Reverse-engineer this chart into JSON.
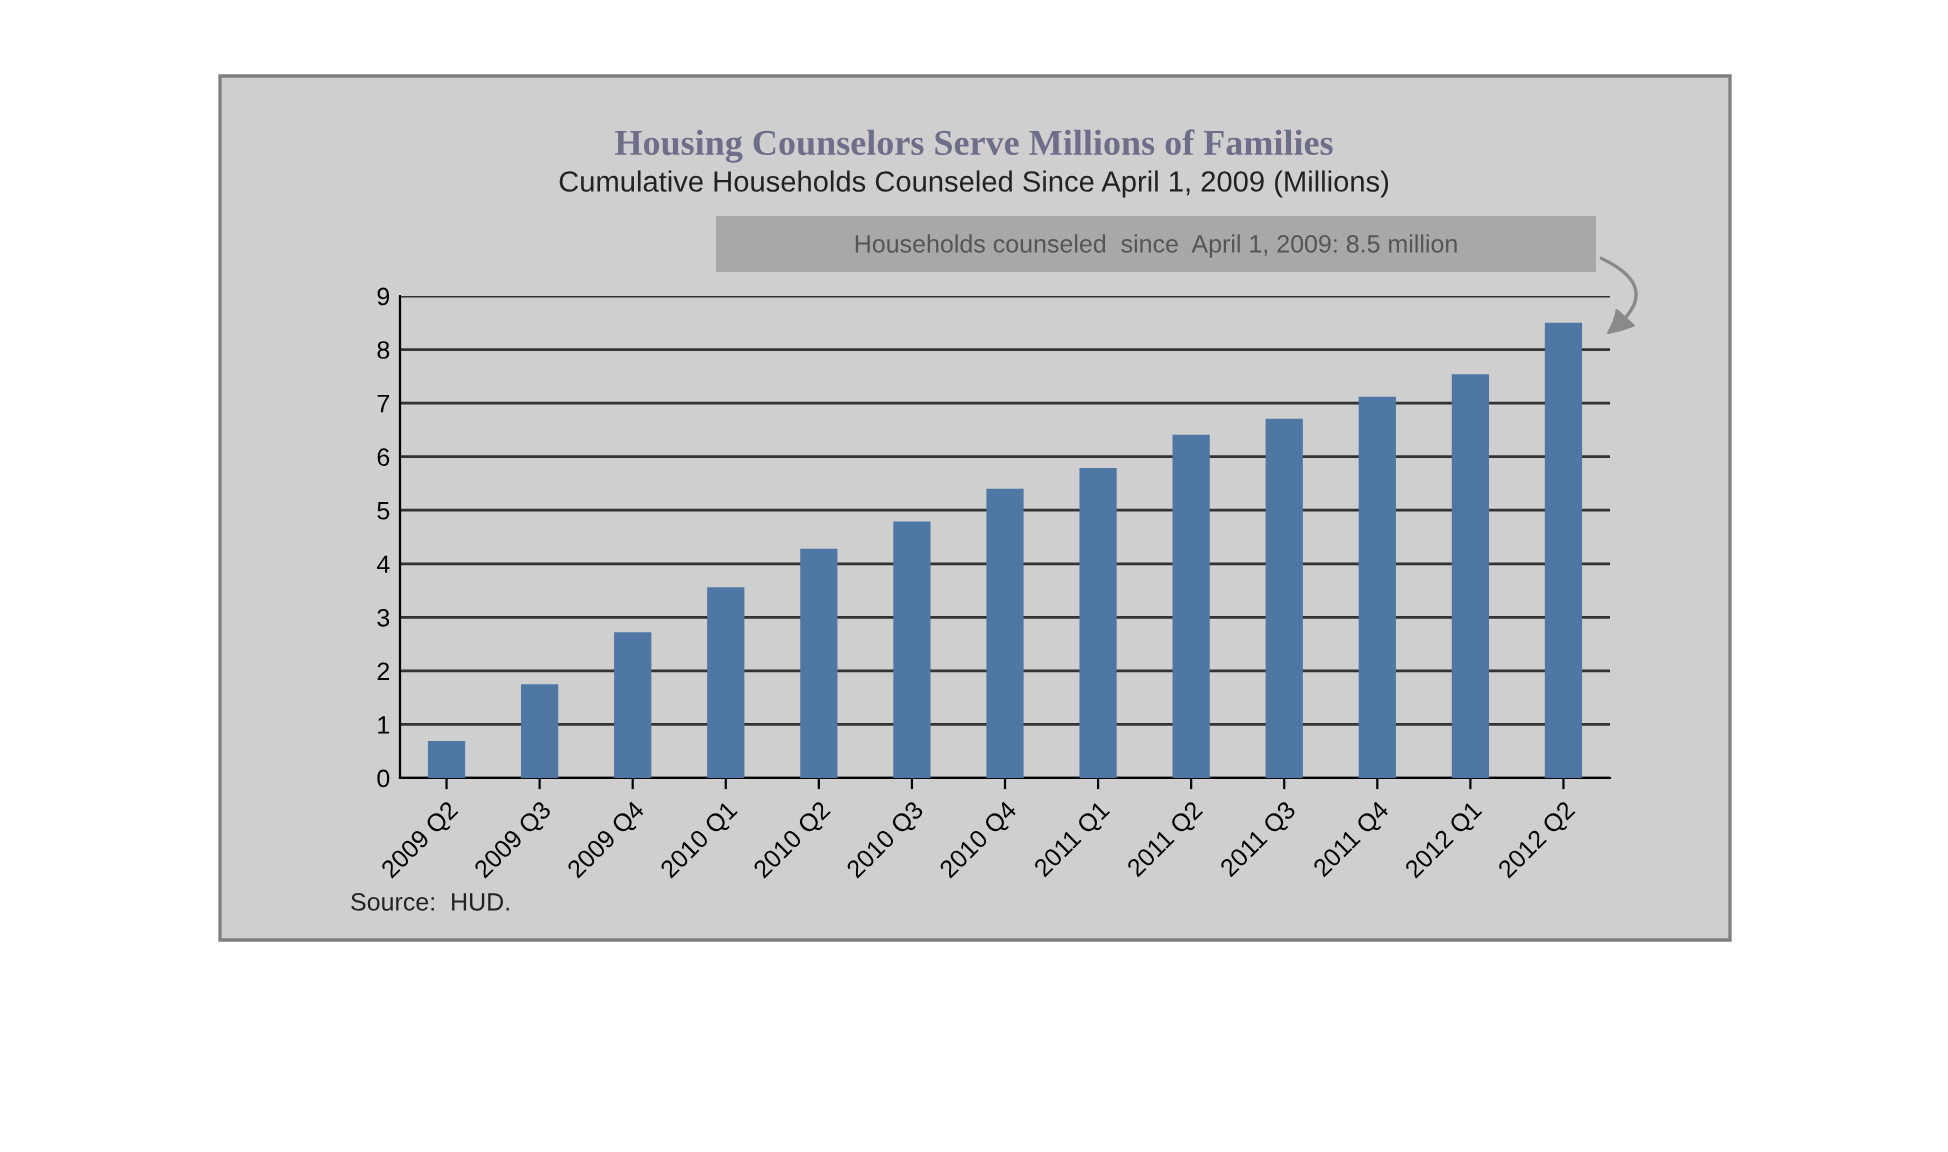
{
  "chart_data": {
    "type": "bar",
    "title": "Housing Counselors Serve Millions of Families",
    "subtitle": "Cumulative Households Counseled Since April 1, 2009 (Millions)",
    "categories": [
      "2009 Q2",
      "2009 Q3",
      "2009 Q4",
      "2010 Q1",
      "2010 Q2",
      "2010 Q3",
      "2010 Q4",
      "2011 Q1",
      "2011 Q2",
      "2011 Q3",
      "2011 Q4",
      "2012 Q1",
      "2012 Q2"
    ],
    "values": [
      0.69,
      1.75,
      2.72,
      3.56,
      4.28,
      4.79,
      5.4,
      5.79,
      6.41,
      6.71,
      7.12,
      7.54,
      8.5
    ],
    "color": "#4f77a3",
    "ylim": [
      0,
      9
    ],
    "yticks": [
      0,
      1,
      2,
      3,
      4,
      5,
      6,
      7,
      8,
      9
    ],
    "grid": "y",
    "legend": false,
    "annotations": [
      "Households counseled  since  April 1, 2009: 8.5 million",
      "Source:  HUD."
    ]
  }
}
